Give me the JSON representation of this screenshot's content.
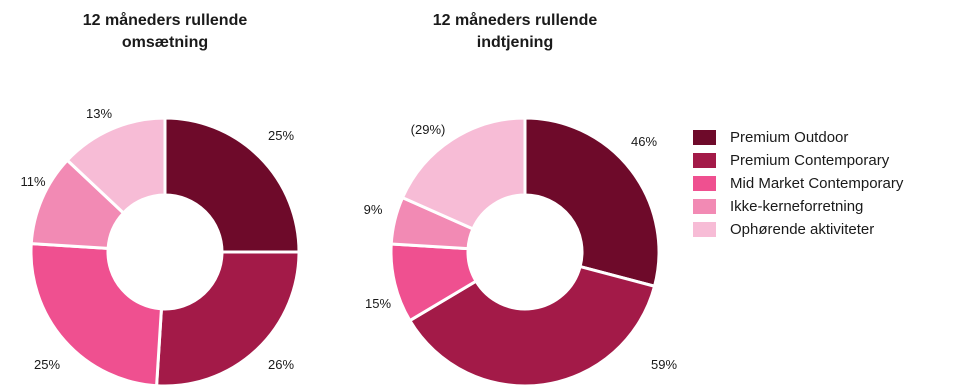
{
  "colors": {
    "premium_outdoor": "#6e0a2a",
    "premium_contemporary": "#a31a48",
    "mid_market": "#ef5090",
    "ikke_kerne": "#f28ab4",
    "ophorende": "#f7bcd6"
  },
  "chart_data": [
    {
      "type": "pie",
      "subtype": "donut",
      "title": "12 måneders rullende omsætning",
      "categories": [
        "Premium Outdoor",
        "Premium Contemporary",
        "Mid Market Contemporary",
        "Ikke-kerneforretning",
        "Ophørende aktiviteter"
      ],
      "values": [
        25,
        26,
        25,
        11,
        13
      ],
      "labels": [
        "25%",
        "26%",
        "25%",
        "11%",
        "13%"
      ]
    },
    {
      "type": "pie",
      "subtype": "donut",
      "title": "12 måneders rullende indtjening",
      "categories": [
        "Premium Outdoor",
        "Premium Contemporary",
        "Mid Market Contemporary",
        "Ikke-kerneforretning",
        "Ophørende aktiviteter"
      ],
      "values": [
        46,
        59,
        15,
        9,
        -29
      ],
      "labels": [
        "46%",
        "59%",
        "15%",
        "9%",
        "(29%)"
      ]
    }
  ],
  "legend": {
    "items": [
      {
        "label": "Premium Outdoor",
        "color": "#6e0a2a"
      },
      {
        "label": "Premium Contemporary",
        "color": "#a31a48"
      },
      {
        "label": "Mid Market Contemporary",
        "color": "#ef5090"
      },
      {
        "label": "Ikke-kerneforretning",
        "color": "#f28ab4"
      },
      {
        "label": "Ophørende aktiviteter",
        "color": "#f7bcd6"
      }
    ]
  },
  "titles": {
    "left_line1": "12 måneders rullende",
    "left_line2": "omsætning",
    "right_line1": "12 måneders rullende",
    "right_line2": "indtjening"
  }
}
